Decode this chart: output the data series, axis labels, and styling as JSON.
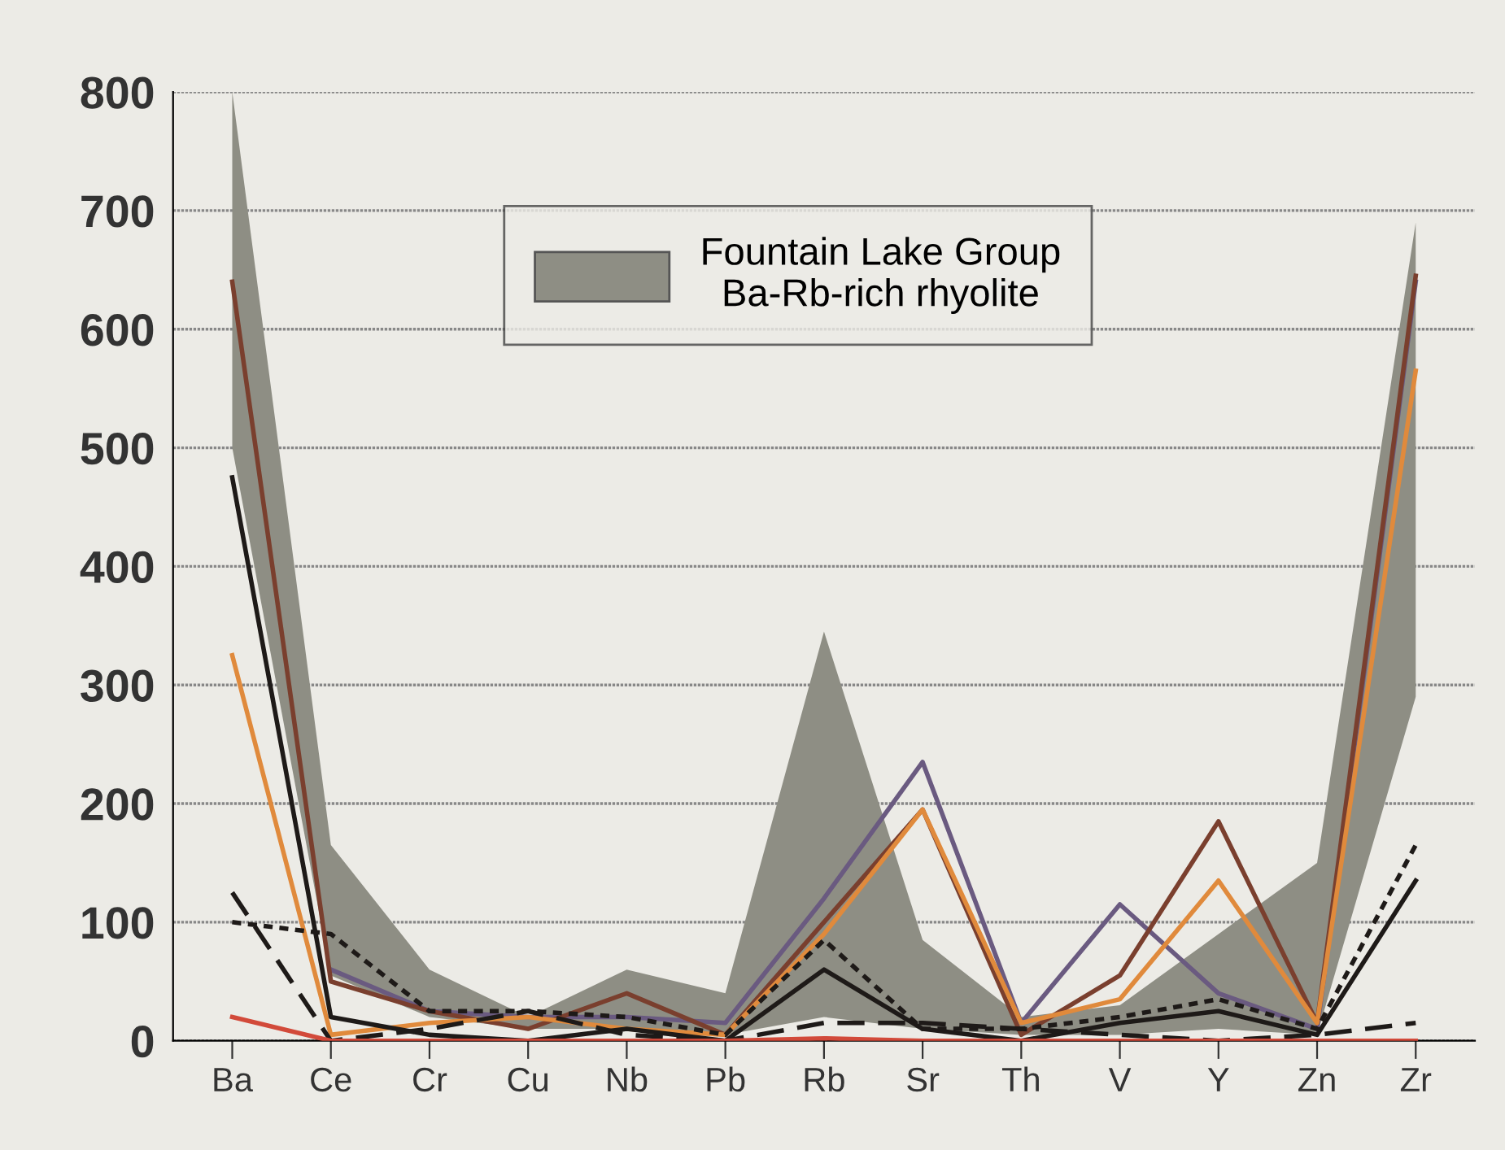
{
  "chart_data": {
    "type": "line",
    "categories": [
      "Ba",
      "Ce",
      "Cr",
      "Cu",
      "Nb",
      "Pb",
      "Rb",
      "Sr",
      "Th",
      "V",
      "Y",
      "Zn",
      "Zr"
    ],
    "series": [
      {
        "name": "Fountain Lake Group\nBa-Rb-rich rhyolite",
        "type": "line",
        "color": "#8e8e84",
        "values": [
          null,
          null,
          null,
          null,
          null,
          null,
          null,
          null,
          null,
          null,
          null,
          null,
          null
        ],
        "lower": [
          500,
          55,
          20,
          10,
          10,
          5,
          20,
          10,
          5,
          5,
          10,
          5,
          290
        ],
        "upper": [
          800,
          165,
          60,
          20,
          60,
          40,
          345,
          85,
          20,
          30,
          90,
          150,
          690
        ]
      },
      {
        "color": "#6a5a80",
        "line_style": "solid",
        "values": [
          null,
          60,
          25,
          20,
          20,
          15,
          120,
          235,
          15,
          115,
          40,
          10,
          640
        ]
      },
      {
        "color": "#7a3f2e",
        "line_style": "solid",
        "values": [
          640,
          50,
          25,
          10,
          40,
          5,
          100,
          195,
          5,
          55,
          185,
          15,
          645
        ]
      },
      {
        "color": "#e08a3c",
        "line_style": "solid",
        "values": [
          325,
          5,
          15,
          20,
          10,
          5,
          90,
          195,
          15,
          35,
          135,
          15,
          565
        ]
      },
      {
        "color": "#1e1a18",
        "line_style": "solid",
        "values": [
          475,
          20,
          5,
          0,
          10,
          0,
          60,
          10,
          0,
          15,
          25,
          5,
          135
        ]
      },
      {
        "color": "#1e1a18",
        "line_style": "dotted",
        "values": [
          100,
          90,
          25,
          25,
          20,
          5,
          85,
          10,
          10,
          20,
          35,
          10,
          165
        ]
      },
      {
        "color": "#1e1a18",
        "line_style": "dashed",
        "values": [
          125,
          0,
          10,
          25,
          5,
          0,
          15,
          15,
          10,
          5,
          0,
          5,
          15
        ]
      },
      {
        "color": "#d24a3a",
        "line_style": "solid",
        "values": [
          20,
          0,
          0,
          0,
          0,
          0,
          2,
          0,
          0,
          0,
          0,
          0,
          0
        ]
      }
    ],
    "ylim": [
      0,
      800
    ],
    "yticks": [
      0,
      100,
      200,
      300,
      400,
      500,
      600,
      700,
      800
    ],
    "grid": "y",
    "legend": "top",
    "marker": "none"
  }
}
